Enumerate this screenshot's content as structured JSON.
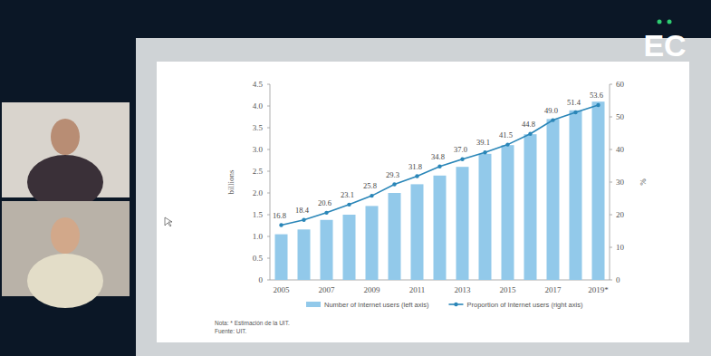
{
  "logo": "EC",
  "chart_data": {
    "type": "bar",
    "categories": [
      "2005",
      null,
      "2007",
      null,
      "2009",
      null,
      "2011",
      null,
      "2013",
      null,
      "2015",
      null,
      "2017",
      null,
      "2019*"
    ],
    "series": [
      {
        "name": "Number of Internet users (left axis)",
        "type": "bar",
        "color": "#92c9ea",
        "values": [
          1.05,
          1.16,
          1.38,
          1.5,
          1.7,
          2.0,
          2.2,
          2.4,
          2.6,
          2.9,
          3.1,
          3.35,
          3.7,
          3.9,
          4.1
        ]
      },
      {
        "name": "Proportion of Internet users (right axis)",
        "type": "line",
        "axis": "y2",
        "color": "#2a86b8",
        "marker": "circle",
        "data_labels": true,
        "values": [
          16.8,
          18.4,
          20.6,
          23.1,
          25.8,
          29.3,
          31.8,
          34.8,
          37.0,
          39.1,
          41.5,
          44.8,
          49.0,
          51.4,
          53.6
        ]
      }
    ],
    "y_label": "billions",
    "y2_label": "%",
    "ylim": [
      0,
      4.5
    ],
    "yticks": [
      0,
      0.5,
      {
        "value": 1,
        "label": "1.0"
      },
      1.5,
      {
        "value": 2,
        "label": "2.0"
      },
      2.5,
      {
        "value": 3,
        "label": "3.0"
      },
      3.5,
      {
        "value": 4,
        "label": "4.0"
      },
      4.5
    ],
    "y2lim": [
      0,
      60
    ],
    "y2ticks": [
      0,
      10,
      20,
      30,
      40,
      50,
      60
    ],
    "grid": false,
    "legend": "bottom",
    "annotations": [
      "Nota: * Estimación de la UIT.",
      "Fuente: UIT."
    ]
  }
}
